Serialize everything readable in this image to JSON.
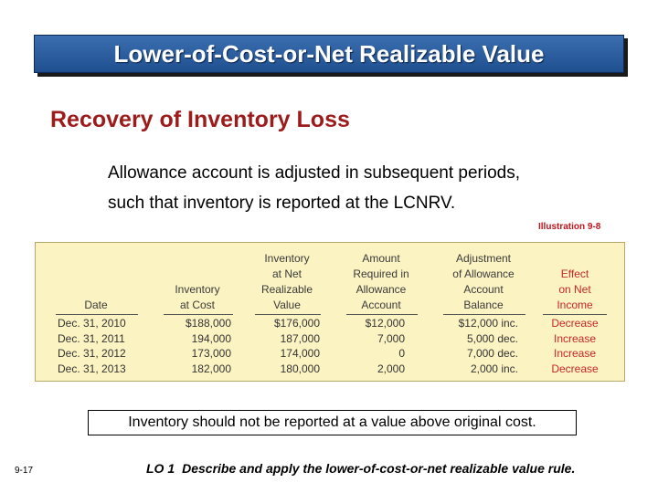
{
  "header": {
    "title": "Lower-of-Cost-or-Net Realizable Value"
  },
  "subtitle": "Recovery of Inventory Loss",
  "body": {
    "line1": "Allowance account is adjusted in subsequent periods,",
    "line2": "such that inventory is reported at the LCNRV."
  },
  "illustration_label": "Illustration 9-8",
  "table": {
    "columns": [
      {
        "lines": [
          "",
          "",
          "",
          "Date"
        ]
      },
      {
        "lines": [
          "",
          "",
          "Inventory",
          "at Cost"
        ]
      },
      {
        "lines": [
          "Inventory",
          "at Net",
          "Realizable",
          "Value"
        ]
      },
      {
        "lines": [
          "Amount",
          "Required in",
          "Allowance",
          "Account"
        ]
      },
      {
        "lines": [
          "Adjustment",
          "of Allowance",
          "Account",
          "Balance"
        ]
      },
      {
        "lines": [
          "",
          "Effect",
          "on Net",
          "Income"
        ]
      }
    ],
    "rows": [
      [
        "Dec. 31, 2010",
        "$188,000",
        "$176,000",
        "$12,000",
        "$12,000 inc.",
        "Decrease"
      ],
      [
        "Dec. 31, 2011",
        "194,000",
        "187,000",
        "7,000",
        "5,000 dec.",
        "Increase"
      ],
      [
        "Dec. 31, 2012",
        "173,000",
        "174,000",
        "0",
        "7,000 dec.",
        "Increase"
      ],
      [
        "Dec. 31, 2013",
        "182,000",
        "180,000",
        "2,000",
        "2,000 inc.",
        "Decrease"
      ]
    ]
  },
  "note": "Inventory should not be reported at a value above original cost.",
  "footer": {
    "page_number": "9-17",
    "lo_tag": "LO 1",
    "lo_text": "Describe and apply the lower-of-cost-or-net realizable value rule."
  },
  "colors": {
    "title_bar": "#2a5e9f",
    "subtitle": "#9c1b1b",
    "table_background": "#fbf3c2",
    "effect_text": "#c8262b"
  }
}
